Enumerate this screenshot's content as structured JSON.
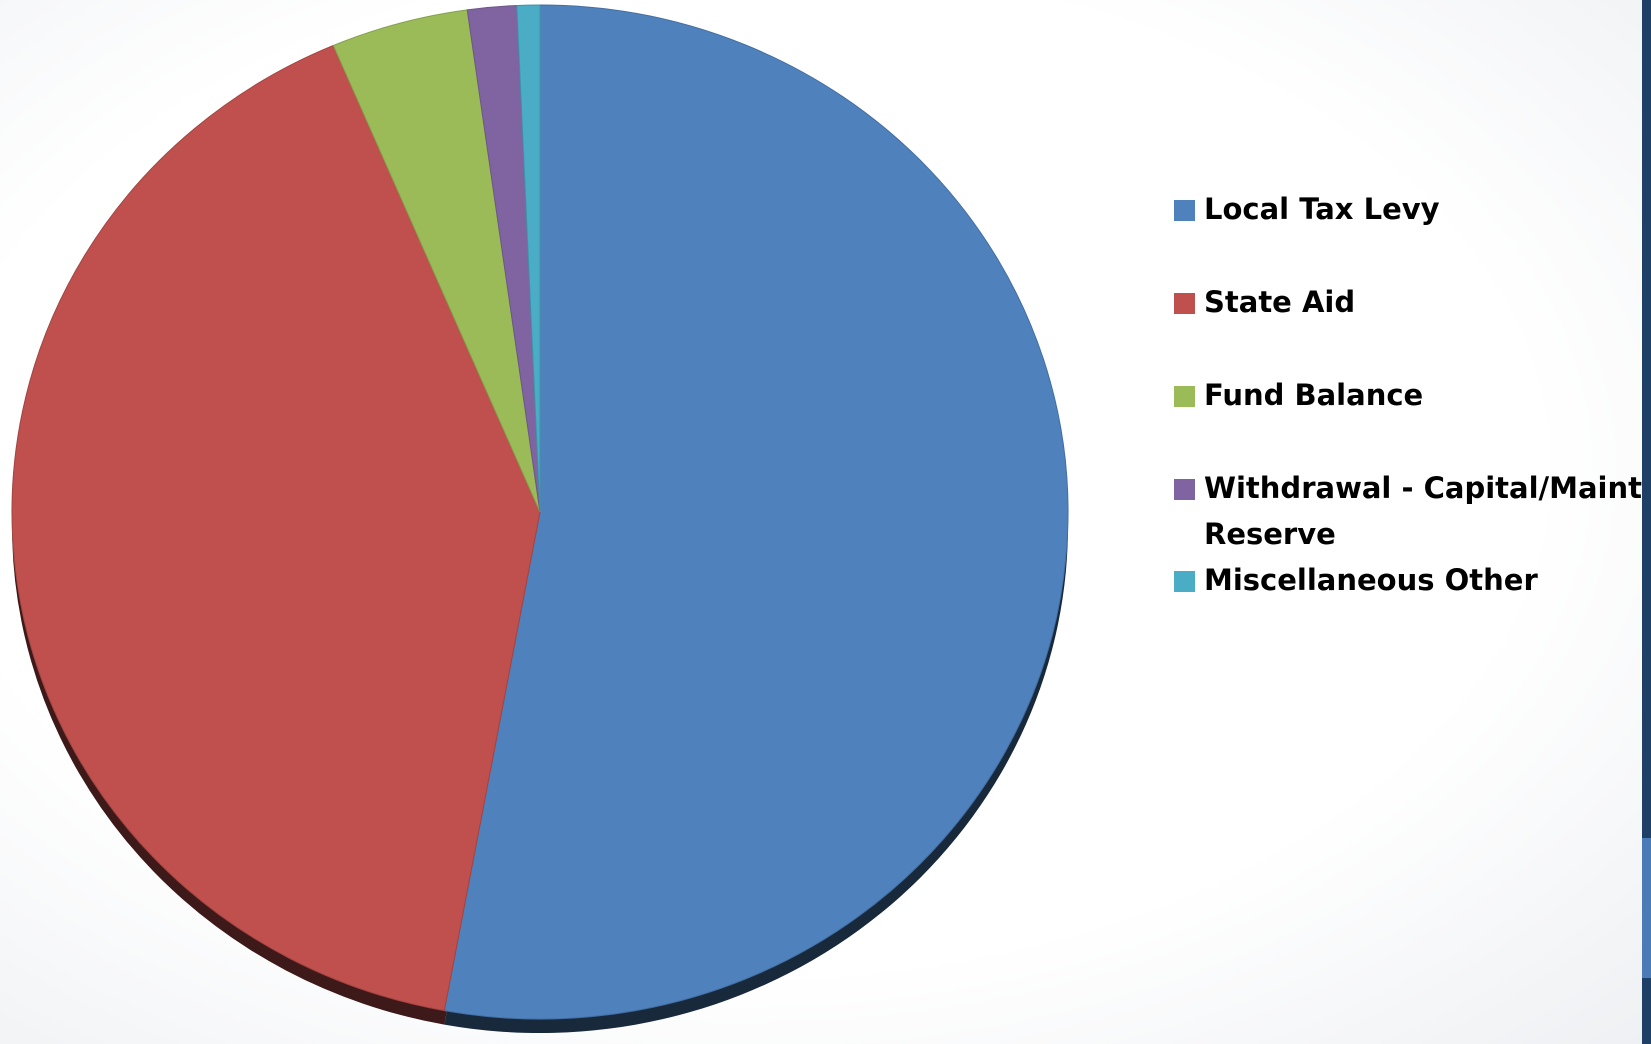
{
  "chart_data": {
    "type": "pie",
    "title": "",
    "start_angle_deg": 0,
    "direction": "clockwise",
    "legend_position": "right",
    "slices": [
      {
        "label": "Local Tax Levy",
        "value": 52.9,
        "color": "#4F81BD"
      },
      {
        "label": "State Aid",
        "value": 40.7,
        "color": "#C0504D"
      },
      {
        "label": "Fund Balance",
        "value": 4.2,
        "color": "#9BBB59"
      },
      {
        "label": "Withdrawal - Capital/Maint Reserve",
        "value": 1.5,
        "color": "#8064A2"
      },
      {
        "label": "Miscellaneous Other",
        "value": 0.7,
        "color": "#4BACC6"
      }
    ]
  },
  "legend": {
    "items": [
      {
        "label": "Local Tax Levy",
        "color": "#4F81BD"
      },
      {
        "label": "State Aid",
        "color": "#C0504D"
      },
      {
        "label": "Fund Balance",
        "color": "#9BBB59"
      },
      {
        "label": "Withdrawal - Capital/Maint Reserve",
        "color": "#8064A2"
      },
      {
        "label": "Miscellaneous Other",
        "color": "#4BACC6"
      }
    ]
  }
}
